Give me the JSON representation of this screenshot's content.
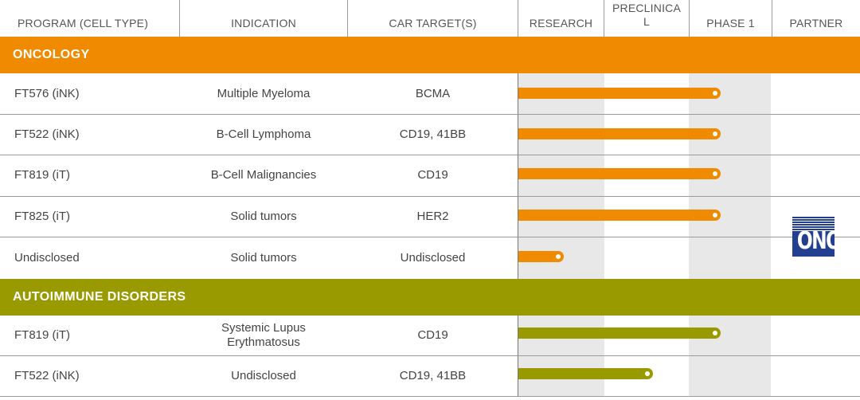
{
  "headers": {
    "program": "PROGRAM (CELL TYPE)",
    "indication": "INDICATION",
    "car_target": "CAR TARGET(S)",
    "research": "RESEARCH",
    "preclinical_line1": "PRECLINICA",
    "preclinical_line2": "L",
    "phase1": "PHASE 1",
    "partner": "PARTNER"
  },
  "colors": {
    "oncology": "#f08a00",
    "autoimmune": "#999900",
    "stage_shading": "#e8e8e8"
  },
  "sections": [
    {
      "title": "ONCOLOGY",
      "rows": [
        {
          "program": "FT576 (iNK)",
          "indication": "Multiple Myeloma",
          "target": "BCMA",
          "progress": 0.8
        },
        {
          "program": "FT522 (iNK)",
          "indication": "B-Cell Lymphoma",
          "target": "CD19, 41BB",
          "progress": 0.8
        },
        {
          "program": "FT819 (iT)",
          "indication": "B-Cell Malignancies",
          "target": "CD19",
          "progress": 0.8
        },
        {
          "program": "FT825 (iT)",
          "indication": "Solid tumors",
          "target": "HER2",
          "progress": 0.8
        },
        {
          "program": "Undisclosed",
          "indication": "Solid tumors",
          "target": "Undisclosed",
          "progress": 0.18
        }
      ]
    },
    {
      "title": "AUTOIMMUNE DISORDERS",
      "rows": [
        {
          "program": "FT819 (iT)",
          "indication_line1": "Systemic Lupus",
          "indication_line2": "Erythmatosus",
          "target": "CD19",
          "progress": 0.8
        },
        {
          "program": "FT522 (iNK)",
          "indication": "Undisclosed",
          "target": "CD19, 41BB",
          "progress": 0.53
        }
      ]
    }
  ],
  "partner": {
    "logo_text": "ONO",
    "logo_icon": "ono-pharmaceutical-logo",
    "logo_color": "#233f8f"
  }
}
